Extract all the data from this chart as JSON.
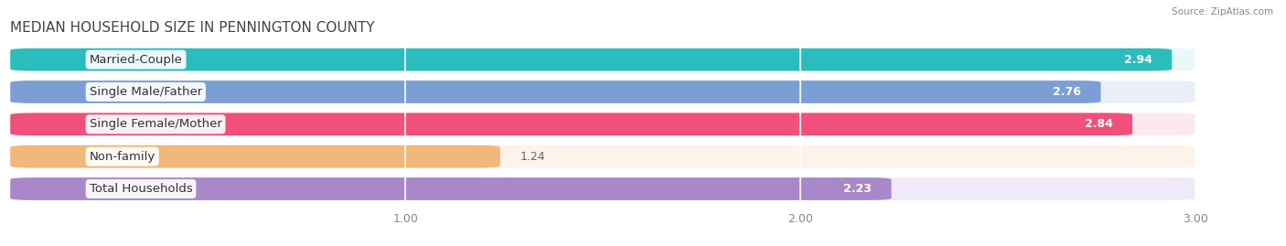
{
  "title": "MEDIAN HOUSEHOLD SIZE IN PENNINGTON COUNTY",
  "source": "Source: ZipAtlas.com",
  "categories": [
    "Married-Couple",
    "Single Male/Father",
    "Single Female/Mother",
    "Non-family",
    "Total Households"
  ],
  "values": [
    2.94,
    2.76,
    2.84,
    1.24,
    2.23
  ],
  "bar_colors": [
    "#2bbcbc",
    "#7b9fd4",
    "#f0507a",
    "#f0b87a",
    "#a888c8"
  ],
  "bar_bg_colors": [
    "#eaf8f8",
    "#eaeef8",
    "#fce8f0",
    "#fdf3e8",
    "#f0eaf8"
  ],
  "label_bg_colors": [
    "#eaf8f8",
    "#eaeef8",
    "#fce8f0",
    "#fdf3e8",
    "#f0eaf8"
  ],
  "xlim_min": 0.0,
  "xlim_max": 3.18,
  "data_max": 3.0,
  "xticks": [
    1.0,
    2.0,
    3.0
  ],
  "xtick_labels": [
    "1.00",
    "2.00",
    "3.00"
  ],
  "title_fontsize": 11,
  "label_fontsize": 9.5,
  "value_fontsize": 9,
  "background_color": "#ffffff",
  "bar_height": 0.7,
  "bar_gap": 0.3
}
